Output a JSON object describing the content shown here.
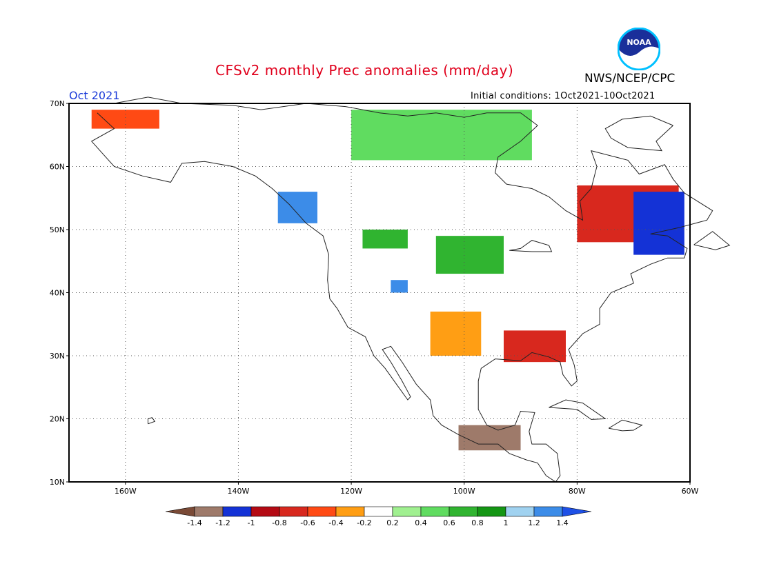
{
  "header": {
    "title": "CFSv2 monthly Prec anomalies (mm/day)",
    "agency": "NWS/NCEP/CPC",
    "logo_text": "NOAA",
    "period": "Oct 2021",
    "initial_conditions": "Initial conditions: 1Oct2021-10Oct2021"
  },
  "map": {
    "lat_range": [
      10,
      70
    ],
    "lon_range": [
      -170,
      -60
    ],
    "lat_labels": [
      "10N",
      "20N",
      "30N",
      "40N",
      "50N",
      "60N",
      "70N"
    ],
    "lon_labels": [
      "160W",
      "140W",
      "120W",
      "100W",
      "80W",
      "60W"
    ],
    "grid": "dotted",
    "colors": {
      "outline": "#000000",
      "coast": "#222222",
      "gridline": "#555555"
    }
  },
  "colorbar": {
    "labels": [
      "-1.4",
      "-1.2",
      "-1",
      "-0.8",
      "-0.6",
      "-0.4",
      "-0.2",
      "0.2",
      "0.4",
      "0.6",
      "0.8",
      "1",
      "1.2",
      "1.4"
    ],
    "colors": [
      "#7a4a36",
      "#9e7a6a",
      "#1432d6",
      "#b40a14",
      "#d8281e",
      "#ff4a14",
      "#ff9e14",
      "#ffffff",
      "#a0f090",
      "#60dc60",
      "#30b430",
      "#149614",
      "#a0d2f0",
      "#3c8ce8",
      "#1e50e6"
    ]
  },
  "anomaly_regions": [
    {
      "name": "northern-rockies",
      "level": 0.6,
      "lat": [
        47,
        50
      ],
      "lon": [
        -118,
        -110
      ]
    },
    {
      "name": "great-plains",
      "level": 0.6,
      "lat": [
        43,
        49
      ],
      "lon": [
        -105,
        -93
      ]
    },
    {
      "name": "colorado",
      "level": 1.2,
      "lat": [
        40,
        42
      ],
      "lon": [
        -113,
        -110
      ]
    },
    {
      "name": "canada-north",
      "level": 0.4,
      "lat": [
        61,
        69
      ],
      "lon": [
        -120,
        -88
      ]
    },
    {
      "name": "pacific-northwest",
      "level": 1.2,
      "lat": [
        51,
        56
      ],
      "lon": [
        -133,
        -126
      ]
    },
    {
      "name": "eastern-canada",
      "level": -0.8,
      "lat": [
        48,
        57
      ],
      "lon": [
        -80,
        -62
      ]
    },
    {
      "name": "labrador",
      "level": -1.2,
      "lat": [
        46,
        56
      ],
      "lon": [
        -70,
        -61
      ]
    },
    {
      "name": "texas",
      "level": -0.4,
      "lat": [
        30,
        37
      ],
      "lon": [
        -106,
        -97
      ]
    },
    {
      "name": "gulf-coast",
      "level": -0.8,
      "lat": [
        29,
        34
      ],
      "lon": [
        -93,
        -82
      ]
    },
    {
      "name": "southern-mexico",
      "level": -1.4,
      "lat": [
        15,
        19
      ],
      "lon": [
        -101,
        -90
      ]
    },
    {
      "name": "western-alaska",
      "level": -0.6,
      "lat": [
        66,
        69
      ],
      "lon": [
        -166,
        -154
      ]
    }
  ]
}
